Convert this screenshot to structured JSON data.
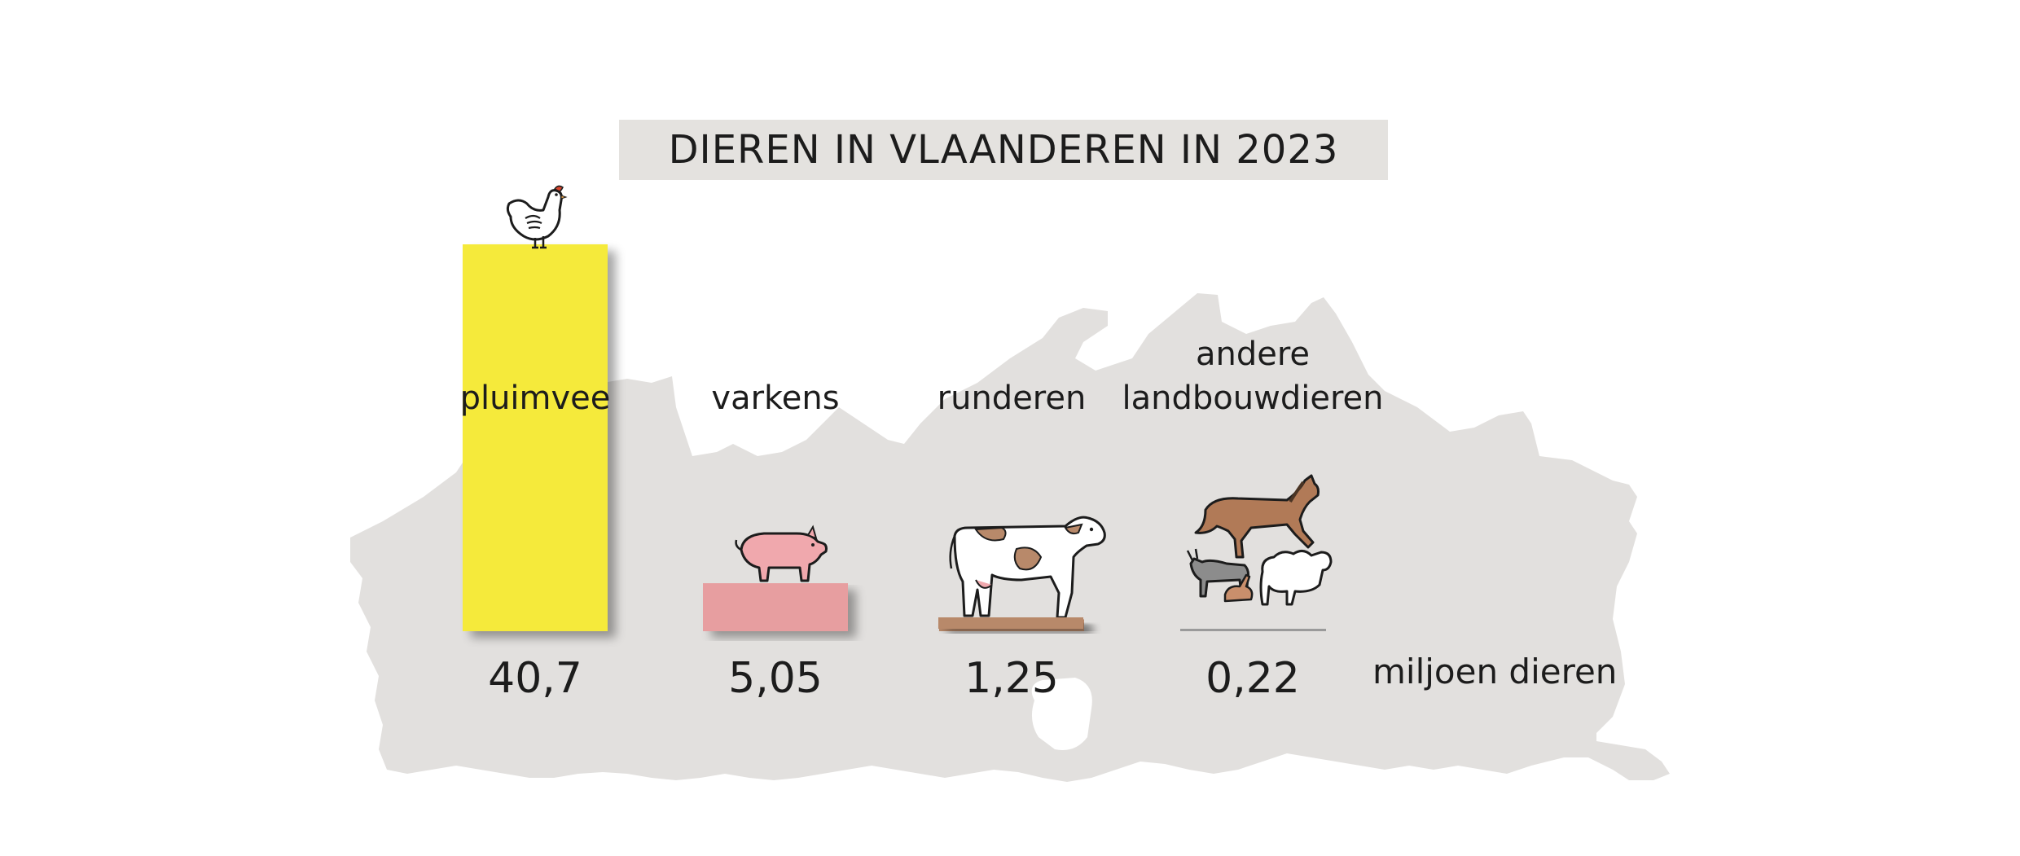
{
  "title": "DIEREN IN VLAANDEREN IN 2023",
  "unit_label": "miljoen dieren",
  "colors": {
    "pluimvee": "#f5ea3a",
    "varkens": "#e79ea0",
    "runderen": "#b8896a",
    "andere": "#9a9a9a",
    "map": "#e2e0de",
    "title_box": "#e4e2df"
  },
  "icons": [
    "chicken-icon",
    "pig-icon",
    "cow-icon",
    "horse-goat-sheep-rabbit-icon"
  ],
  "chart_data": {
    "type": "bar",
    "title": "DIEREN IN VLAANDEREN IN 2023",
    "categories": [
      "pluimvee",
      "varkens",
      "runderen",
      "andere landbouwdieren"
    ],
    "category_lines": [
      [
        "pluimvee"
      ],
      [
        "varkens"
      ],
      [
        "runderen"
      ],
      [
        "andere",
        "landbouwdieren"
      ]
    ],
    "values": [
      40.7,
      5.05,
      1.25,
      0.22
    ],
    "value_labels": [
      "40,7",
      "5,05",
      "1,25",
      "0,22"
    ],
    "unit": "miljoen dieren",
    "ylim": [
      0,
      40.7
    ],
    "grid": false,
    "legend": "none"
  }
}
